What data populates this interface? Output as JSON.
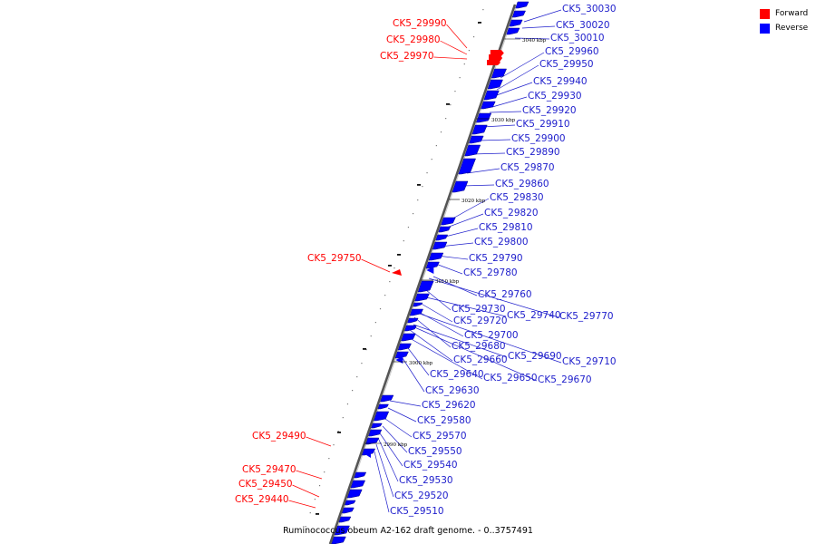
{
  "legend": [
    {
      "label": "Forward",
      "color": "#ff0000"
    },
    {
      "label": "Reverse",
      "color": "#0000ff"
    }
  ],
  "caption": "Ruminococcus obeum A2-162 draft genome. - 0..3757491",
  "scale_labels": [
    "3040 kbp",
    "3030 kbp",
    "3020 kbp",
    "3010 kbp",
    "3000 kbp",
    "2990 kbp"
  ],
  "forward_genes": [
    "CK5_29990",
    "CK5_29980",
    "CK5_29970",
    "CK5_29750",
    "CK5_29490",
    "CK5_29470",
    "CK5_29450",
    "CK5_29440"
  ],
  "reverse_genes": [
    "CK5_30030",
    "CK5_30020",
    "CK5_30010",
    "CK5_29960",
    "CK5_29950",
    "CK5_29940",
    "CK5_29930",
    "CK5_29920",
    "CK5_29910",
    "CK5_29900",
    "CK5_29890",
    "CK5_29870",
    "CK5_29860",
    "CK5_29830",
    "CK5_29820",
    "CK5_29810",
    "CK5_29800",
    "CK5_29790",
    "CK5_29780",
    "CK5_29760",
    "CK5_29730",
    "CK5_29740",
    "CK5_29770",
    "CK5_29720",
    "CK5_29700",
    "CK5_29680",
    "CK5_29690",
    "CK5_29710",
    "CK5_29660",
    "CK5_29640",
    "CK5_29650",
    "CK5_29670",
    "CK5_29630",
    "CK5_29620",
    "CK5_29580",
    "CK5_29570",
    "CK5_29550",
    "CK5_29540",
    "CK5_29530",
    "CK5_29520",
    "CK5_29510"
  ],
  "colors": {
    "forward": "#ff0000",
    "reverse": "#0000ff",
    "label_forward": "#ff0000",
    "label_reverse": "#2020cc",
    "backbone": "#888888"
  }
}
